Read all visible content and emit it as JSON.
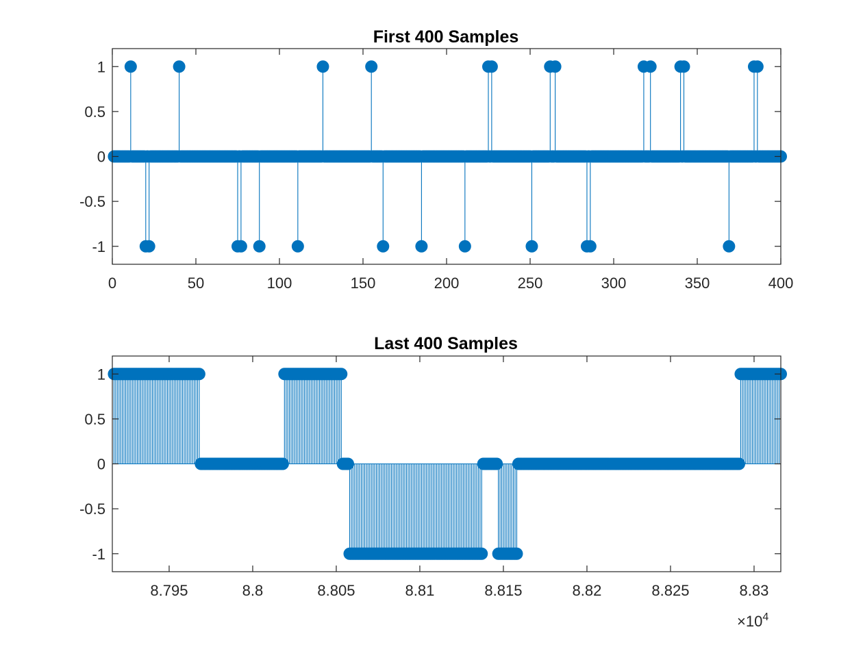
{
  "colors": {
    "series": "#0072BD",
    "axes": "#262626",
    "background": "#ffffff"
  },
  "chart_data": [
    {
      "type": "stem",
      "title": "First 400 Samples",
      "xlabel": "",
      "ylabel": "",
      "xlim": [
        0,
        400
      ],
      "ylim": [
        -1.2,
        1.2
      ],
      "xticks": [
        0,
        50,
        100,
        150,
        200,
        250,
        300,
        350,
        400
      ],
      "xtick_labels": [
        "0",
        "50",
        "100",
        "150",
        "200",
        "250",
        "300",
        "350",
        "400"
      ],
      "yticks": [
        1,
        0.5,
        0,
        -0.5,
        -1
      ],
      "ytick_labels": [
        "1",
        "0.5",
        "0",
        "-0.5",
        "-1"
      ],
      "x_start": 1,
      "x_end": 400,
      "nonzero": [
        {
          "x": 11,
          "y": 1
        },
        {
          "x": 20,
          "y": -1
        },
        {
          "x": 22,
          "y": -1
        },
        {
          "x": 40,
          "y": 1
        },
        {
          "x": 75,
          "y": -1
        },
        {
          "x": 77,
          "y": -1
        },
        {
          "x": 88,
          "y": -1
        },
        {
          "x": 111,
          "y": -1
        },
        {
          "x": 126,
          "y": 1
        },
        {
          "x": 155,
          "y": 1
        },
        {
          "x": 162,
          "y": -1
        },
        {
          "x": 185,
          "y": -1
        },
        {
          "x": 211,
          "y": -1
        },
        {
          "x": 225,
          "y": 1
        },
        {
          "x": 227,
          "y": 1
        },
        {
          "x": 251,
          "y": -1
        },
        {
          "x": 262,
          "y": 1
        },
        {
          "x": 265,
          "y": 1
        },
        {
          "x": 284,
          "y": -1
        },
        {
          "x": 286,
          "y": -1
        },
        {
          "x": 318,
          "y": 1
        },
        {
          "x": 322,
          "y": 1
        },
        {
          "x": 340,
          "y": 1
        },
        {
          "x": 342,
          "y": 1
        },
        {
          "x": 369,
          "y": -1
        },
        {
          "x": 384,
          "y": 1
        },
        {
          "x": 386,
          "y": 1
        }
      ],
      "grid": false
    },
    {
      "type": "stem",
      "title": "Last 400 Samples",
      "xlabel": "",
      "ylabel": "",
      "xlim": [
        87916,
        88316
      ],
      "ylim": [
        -1.2,
        1.2
      ],
      "xticks": [
        87950,
        88000,
        88050,
        88100,
        88150,
        88200,
        88250,
        88300
      ],
      "xtick_labels": [
        "8.795",
        "8.8",
        "8.805",
        "8.81",
        "8.815",
        "8.82",
        "8.825",
        "8.83"
      ],
      "x_exponent_label": "×10",
      "x_exponent_power": "4",
      "yticks": [
        1,
        0.5,
        0,
        -0.5,
        -1
      ],
      "ytick_labels": [
        "1",
        "0.5",
        "0",
        "-0.5",
        "-1"
      ],
      "x_start": 87917,
      "x_end": 88316,
      "segments": [
        {
          "from": 87917,
          "to": 87968,
          "y": 1
        },
        {
          "from": 87969,
          "to": 88018,
          "y": 0
        },
        {
          "from": 88019,
          "to": 88053,
          "y": 1
        },
        {
          "from": 88054,
          "to": 88057,
          "y": 0
        },
        {
          "from": 88058,
          "to": 88137,
          "y": -1
        },
        {
          "from": 88138,
          "to": 88146,
          "y": 0
        },
        {
          "from": 88147,
          "to": 88158,
          "y": -1
        },
        {
          "from": 88159,
          "to": 88291,
          "y": 0
        },
        {
          "from": 88292,
          "to": 88316,
          "y": 1
        }
      ],
      "grid": false
    }
  ]
}
